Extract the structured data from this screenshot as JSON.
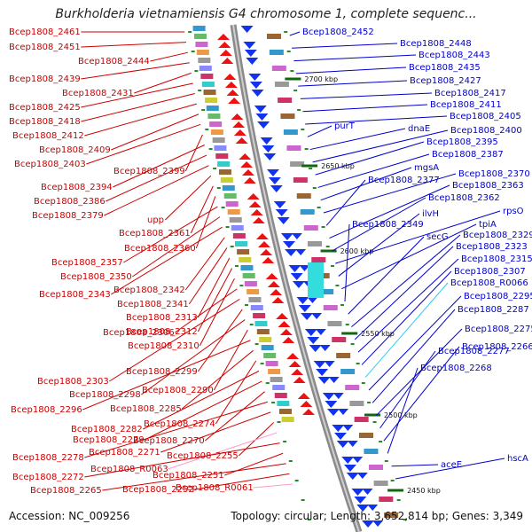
{
  "title": "Burkholderia vietnamiensis G4 chromosome 1, complete sequenc...",
  "footer": {
    "accession": "Accession: NC_009256",
    "summary": "Topology: circular; Length: 3,652,814 bp; Genes: 3,349"
  },
  "kbp_markers": [
    "2700 kbp",
    "2650 kbp",
    "2600 kbp",
    "2550 kbp",
    "2500 kbp",
    "2450 kbp"
  ],
  "left_labels": [
    {
      "text": "Bcep1808_2461",
      "type": "cds"
    },
    {
      "text": "Bcep1808_2451",
      "type": "cds"
    },
    {
      "text": "Bcep1808_2444",
      "type": "cds"
    },
    {
      "text": "Bcep1808_2439",
      "type": "cds"
    },
    {
      "text": "Bcep1808_2431",
      "type": "cds"
    },
    {
      "text": "Bcep1808_2425",
      "type": "cds"
    },
    {
      "text": "Bcep1808_2418",
      "type": "cds"
    },
    {
      "text": "Bcep1808_2412",
      "type": "cds"
    },
    {
      "text": "Bcep1808_2409",
      "type": "cds"
    },
    {
      "text": "Bcep1808_2403",
      "type": "cds"
    },
    {
      "text": "Bcep1808_2399",
      "type": "cds"
    },
    {
      "text": "Bcep1808_2394",
      "type": "cds"
    },
    {
      "text": "Bcep1808_2386",
      "type": "cds"
    },
    {
      "text": "Bcep1808_2379",
      "type": "cds"
    },
    {
      "text": "upp",
      "type": "cds"
    },
    {
      "text": "Bcep1808_2361",
      "type": "cds"
    },
    {
      "text": "Bcep1808_2360",
      "type": "cds"
    },
    {
      "text": "Bcep1808_2357",
      "type": "cds"
    },
    {
      "text": "Bcep1808_2350",
      "type": "cds"
    },
    {
      "text": "Bcep1808_2343",
      "type": "cds"
    },
    {
      "text": "Bcep1808_2342",
      "type": "cds"
    },
    {
      "text": "Bcep1808_2341",
      "type": "cds"
    },
    {
      "text": "Bcep1808_2313",
      "type": "cds"
    },
    {
      "text": "Bcep1808_2312",
      "type": "cds"
    },
    {
      "text": "Bcep1808_2310",
      "type": "cds"
    },
    {
      "text": "Bcep1808_2306",
      "type": "cds"
    },
    {
      "text": "Bcep1808_2303",
      "type": "cds"
    },
    {
      "text": "Bcep1808_2299",
      "type": "cds"
    },
    {
      "text": "Bcep1808_2298",
      "type": "cds"
    },
    {
      "text": "Bcep1808_2290",
      "type": "cds"
    },
    {
      "text": "Bcep1808_2296",
      "type": "cds"
    },
    {
      "text": "Bcep1808_2285",
      "type": "cds"
    },
    {
      "text": "Bcep1808_2274",
      "type": "cds"
    },
    {
      "text": "Bcep1808_2282",
      "type": "cds"
    },
    {
      "text": "Bcep1808_2279",
      "type": "cds"
    },
    {
      "text": "Bcep1808_2270",
      "type": "cds"
    },
    {
      "text": "Bcep1808_2278",
      "type": "cds"
    },
    {
      "text": "Bcep1808_2271",
      "type": "cds"
    },
    {
      "text": "Bcep1808_2255",
      "type": "cds"
    },
    {
      "text": "Bcep1808_R0063",
      "type": "rna"
    },
    {
      "text": "Bcep1808_2272",
      "type": "cds"
    },
    {
      "text": "Bcep1808_2251",
      "type": "cds"
    },
    {
      "text": "Bcep1808_2265",
      "type": "cds"
    },
    {
      "text": "Bcep1808_2252",
      "type": "cds"
    },
    {
      "text": "Bcep1808_R0061",
      "type": "rna"
    }
  ],
  "right_labels": [
    {
      "text": "Bcep1808_2452",
      "type": "cds"
    },
    {
      "text": "Bcep1808_2448",
      "type": "cds"
    },
    {
      "text": "Bcep1808_2443",
      "type": "cds"
    },
    {
      "text": "Bcep1808_2435",
      "type": "cds"
    },
    {
      "text": "Bcep1808_2427",
      "type": "cds"
    },
    {
      "text": "Bcep1808_2417",
      "type": "cds"
    },
    {
      "text": "Bcep1808_2411",
      "type": "cds"
    },
    {
      "text": "Bcep1808_2405",
      "type": "cds"
    },
    {
      "text": "purT",
      "type": "cds"
    },
    {
      "text": "dnaE",
      "type": "cds"
    },
    {
      "text": "Bcep1808_2400",
      "type": "cds"
    },
    {
      "text": "Bcep1808_2395",
      "type": "cds"
    },
    {
      "text": "Bcep1808_2387",
      "type": "cds"
    },
    {
      "text": "mgsA",
      "type": "cds"
    },
    {
      "text": "Bcep1808_2370",
      "type": "cds"
    },
    {
      "text": "Bcep1808_2377",
      "type": "cds"
    },
    {
      "text": "Bcep1808_2363",
      "type": "cds"
    },
    {
      "text": "Bcep1808_2362",
      "type": "cds"
    },
    {
      "text": "rpsO",
      "type": "cds"
    },
    {
      "text": "ilvH",
      "type": "cds"
    },
    {
      "text": "tpiA",
      "type": "cds"
    },
    {
      "text": "Bcep1808_2349",
      "type": "cds"
    },
    {
      "text": "secG",
      "type": "cds"
    },
    {
      "text": "Bcep1808_2329",
      "type": "cds"
    },
    {
      "text": "Bcep1808_2323",
      "type": "cds"
    },
    {
      "text": "Bcep1808_2315",
      "type": "cds"
    },
    {
      "text": "Bcep1808_2307",
      "type": "cds"
    },
    {
      "text": "Bcep1808_R0066",
      "type": "rna"
    },
    {
      "text": "Bcep1808_2295",
      "type": "cds"
    },
    {
      "text": "Bcep1808_2287",
      "type": "cds"
    },
    {
      "text": "Bcep1808_2275",
      "type": "cds"
    },
    {
      "text": "Bcep1808_2277",
      "type": "cds"
    },
    {
      "text": "Bcep1808_2266",
      "type": "cds"
    },
    {
      "text": "Bcep1808_2268",
      "type": "cds"
    },
    {
      "text": "aceE",
      "type": "cds"
    },
    {
      "text": "hscA",
      "type": "cds"
    }
  ],
  "colors": {
    "left_labels": "#cc0000",
    "right_labels": "#0000cc",
    "rna_left": "#ff99cc",
    "rna_right": "#33ccee",
    "backbone": "#8a8a8a",
    "tick_marks": "#2a8a2a"
  }
}
